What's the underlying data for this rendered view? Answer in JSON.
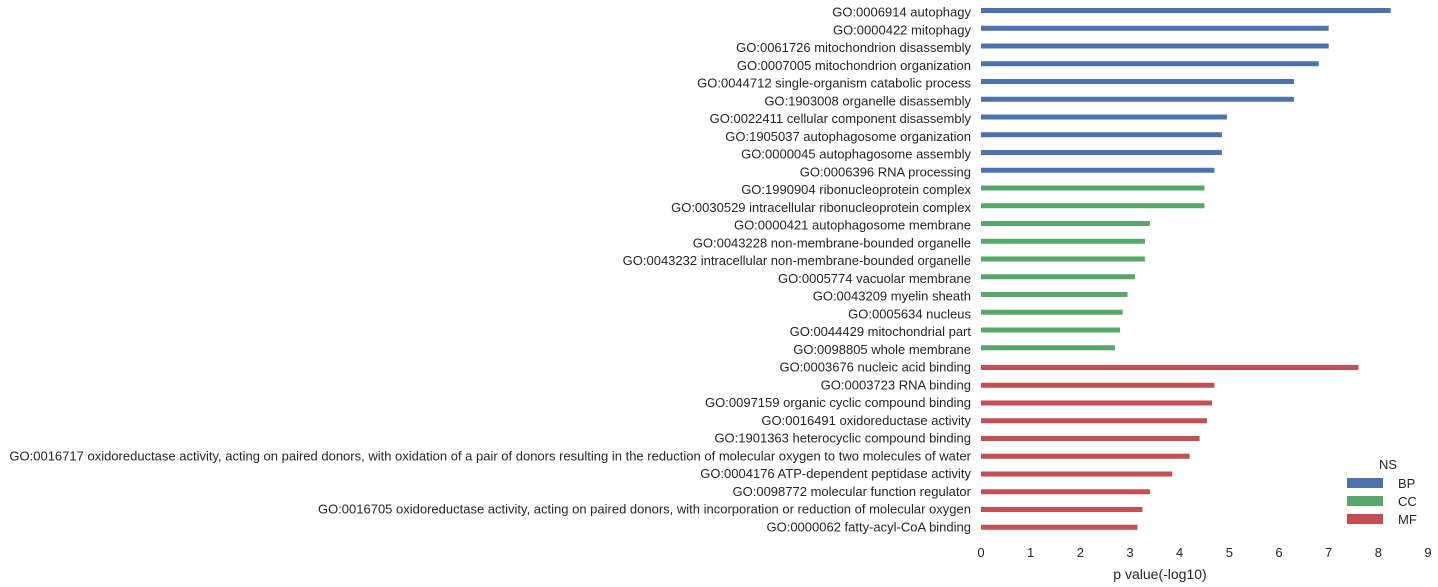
{
  "chart_data": {
    "type": "bar",
    "orientation": "horizontal",
    "title": "",
    "xlabel": "p value(-log10)",
    "ylabel": "",
    "xlim": [
      0,
      9
    ],
    "xticks": [
      "0",
      "1",
      "2",
      "3",
      "4",
      "5",
      "6",
      "7",
      "8",
      "9"
    ],
    "grid": false,
    "legend": {
      "title": "NS",
      "placement": "lower-right",
      "entries": [
        {
          "name": "BP",
          "color": "#4c72b0"
        },
        {
          "name": "CC",
          "color": "#55a868"
        },
        {
          "name": "MF",
          "color": "#c44e52"
        }
      ]
    },
    "categories": [
      "GO:0006914 autophagy",
      "GO:0000422 mitophagy",
      "GO:0061726 mitochondrion disassembly",
      "GO:0007005 mitochondrion organization",
      "GO:0044712 single-organism catabolic process",
      "GO:1903008 organelle disassembly",
      "GO:0022411 cellular component disassembly",
      "GO:1905037 autophagosome organization",
      "GO:0000045 autophagosome assembly",
      "GO:0006396 RNA processing",
      "GO:1990904 ribonucleoprotein complex",
      "GO:0030529 intracellular ribonucleoprotein complex",
      "GO:0000421 autophagosome membrane",
      "GO:0043228 non-membrane-bounded organelle",
      "GO:0043232 intracellular non-membrane-bounded organelle",
      "GO:0005774 vacuolar membrane",
      "GO:0043209 myelin sheath",
      "GO:0005634 nucleus",
      "GO:0044429 mitochondrial part",
      "GO:0098805 whole membrane",
      "GO:0003676 nucleic acid binding",
      "GO:0003723 RNA binding",
      "GO:0097159 organic cyclic compound binding",
      "GO:0016491 oxidoreductase activity",
      "GO:1901363 heterocyclic compound binding",
      "GO:0016717 oxidoreductase activity, acting on paired donors, with oxidation of a pair of donors resulting in the reduction of molecular oxygen to two molecules of water",
      "GO:0004176 ATP-dependent peptidase activity",
      "GO:0098772 molecular function regulator",
      "GO:0016705 oxidoreductase activity, acting on paired donors, with incorporation or reduction of molecular oxygen",
      "GO:0000062 fatty-acyl-CoA binding"
    ],
    "namespaces": [
      "BP",
      "BP",
      "BP",
      "BP",
      "BP",
      "BP",
      "BP",
      "BP",
      "BP",
      "BP",
      "CC",
      "CC",
      "CC",
      "CC",
      "CC",
      "CC",
      "CC",
      "CC",
      "CC",
      "CC",
      "MF",
      "MF",
      "MF",
      "MF",
      "MF",
      "MF",
      "MF",
      "MF",
      "MF",
      "MF"
    ],
    "values": [
      8.25,
      7.0,
      7.0,
      6.8,
      6.3,
      6.3,
      4.95,
      4.85,
      4.85,
      4.7,
      4.5,
      4.5,
      3.4,
      3.3,
      3.3,
      3.1,
      2.95,
      2.85,
      2.8,
      2.7,
      7.6,
      4.7,
      4.65,
      4.55,
      4.4,
      4.2,
      3.85,
      3.4,
      3.25,
      3.15
    ]
  }
}
